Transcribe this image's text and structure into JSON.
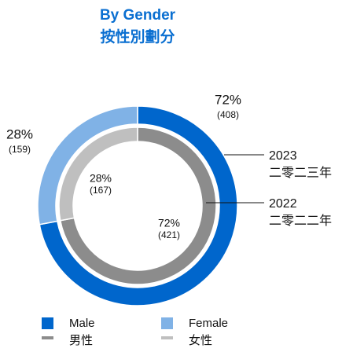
{
  "chart_data": {
    "type": "nested-donut",
    "title": "By Gender",
    "subtitle": "按性別劃分",
    "categories": [
      "Male",
      "Female"
    ],
    "categories_zh": [
      "男性",
      "女性"
    ],
    "series": [
      {
        "name": "2023",
        "name_zh": "二零二三年",
        "colors": [
          "#0066cc",
          "#80b2e6"
        ],
        "values": [
          72,
          28
        ],
        "value_labels": [
          "72%",
          "28%"
        ],
        "counts": [
          408,
          159
        ],
        "count_labels": [
          "(408)",
          "(159)"
        ]
      },
      {
        "name": "2022",
        "name_zh": "二零二二年",
        "colors": [
          "#8c8c8c",
          "#bfbfbf"
        ],
        "values": [
          72,
          28
        ],
        "value_labels": [
          "72%",
          "28%"
        ],
        "counts": [
          421,
          167
        ],
        "count_labels": [
          "(421)",
          "(167)"
        ]
      }
    ]
  }
}
